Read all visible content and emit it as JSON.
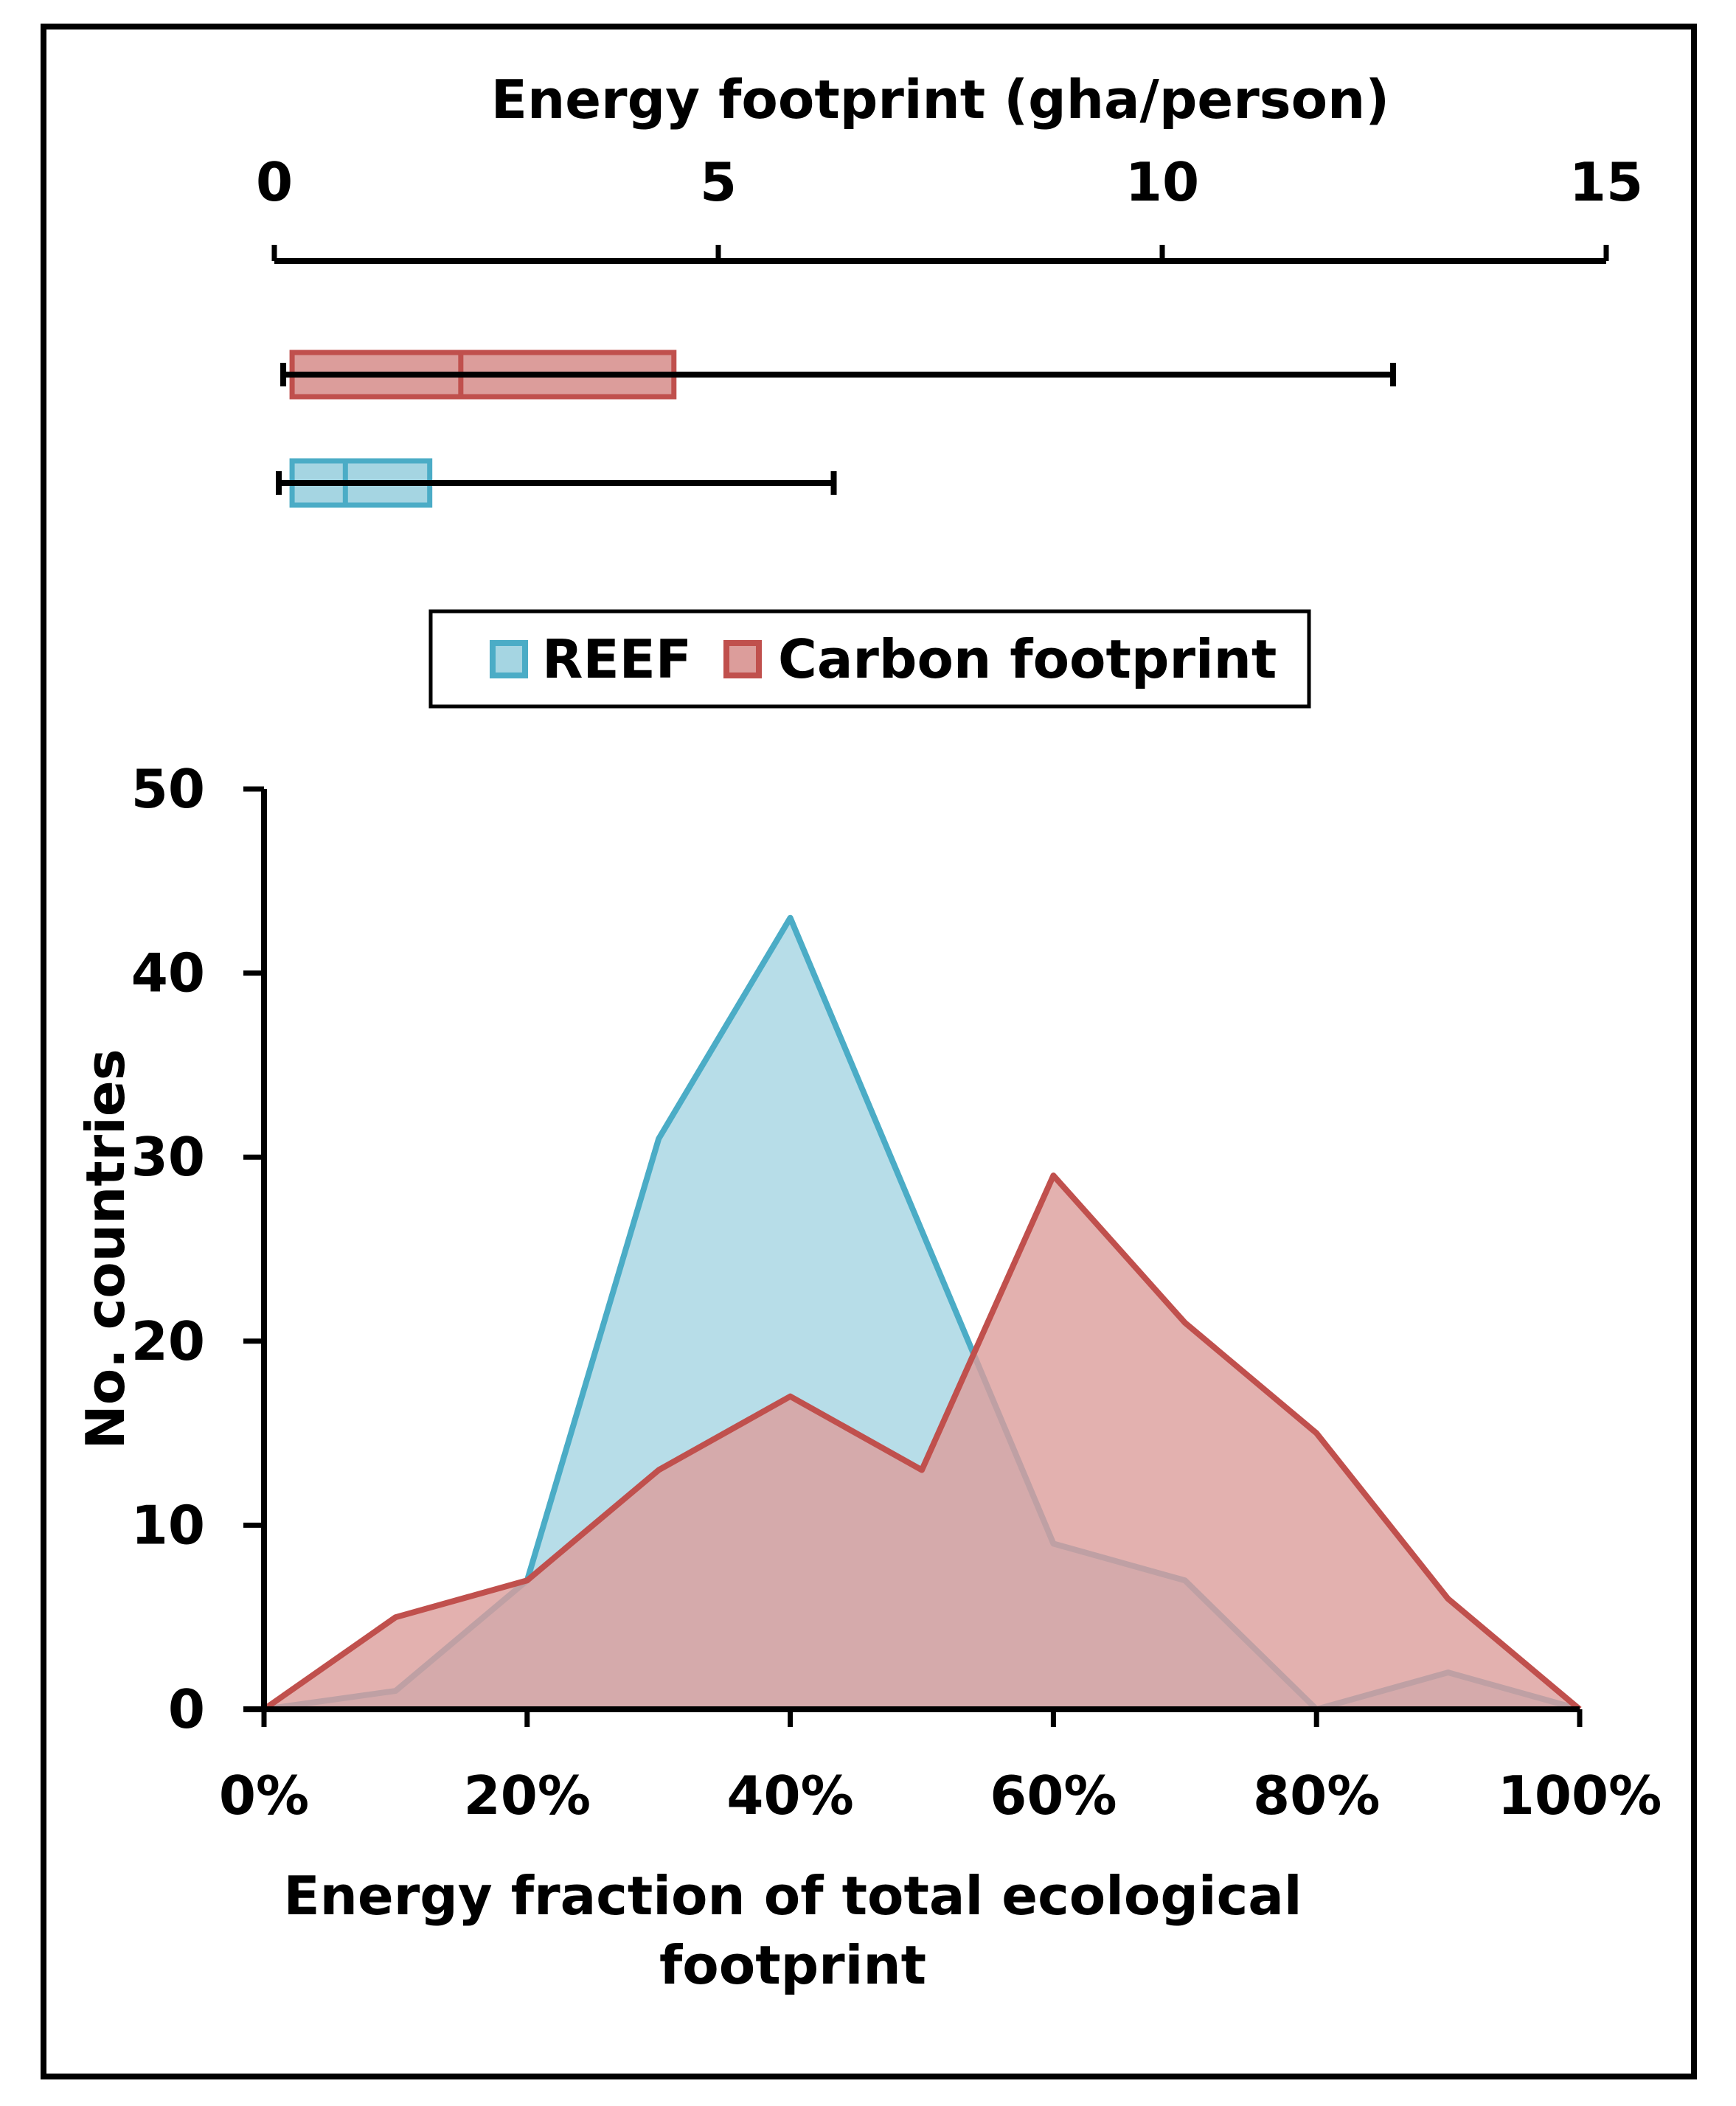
{
  "chart_data": [
    {
      "type": "box",
      "xlabel": "Energy footprint (gha/person)",
      "xlim": [
        0,
        15
      ],
      "xticks": [
        "0",
        "5",
        "10",
        "15"
      ],
      "series": [
        {
          "name": "Carbon footprint",
          "color": "#c0504d",
          "fill": "#dc9d9b",
          "min": 0.1,
          "q1": 0.2,
          "median": 2.1,
          "q3": 4.5,
          "max": 12.6
        },
        {
          "name": "REEF",
          "color": "#4bacc6",
          "fill": "#a5d5e2",
          "min": 0.05,
          "q1": 0.2,
          "median": 0.8,
          "q3": 1.75,
          "max": 6.3
        }
      ]
    },
    {
      "type": "area",
      "xlabel": "Energy fraction of total ecological footprint",
      "ylabel": "No. countries",
      "xlim": [
        0,
        100
      ],
      "ylim": [
        0,
        50
      ],
      "xticks": [
        "0%",
        "20%",
        "40%",
        "60%",
        "80%",
        "100%"
      ],
      "yticks": [
        "0",
        "10",
        "20",
        "30",
        "40",
        "50"
      ],
      "x": [
        0,
        10,
        20,
        30,
        40,
        50,
        60,
        70,
        80,
        90,
        100
      ],
      "legend": "top",
      "series": [
        {
          "name": "REEF",
          "color": "#4bacc6",
          "fill": "#a5d5e2",
          "values": [
            0,
            1,
            7,
            31,
            43,
            26,
            9,
            7,
            0,
            2,
            0
          ]
        },
        {
          "name": "Carbon footprint",
          "color": "#c0504d",
          "fill": "#dc9d9b",
          "values": [
            0,
            5,
            7,
            13,
            17,
            13,
            29,
            21,
            15,
            6,
            0
          ]
        }
      ]
    }
  ]
}
